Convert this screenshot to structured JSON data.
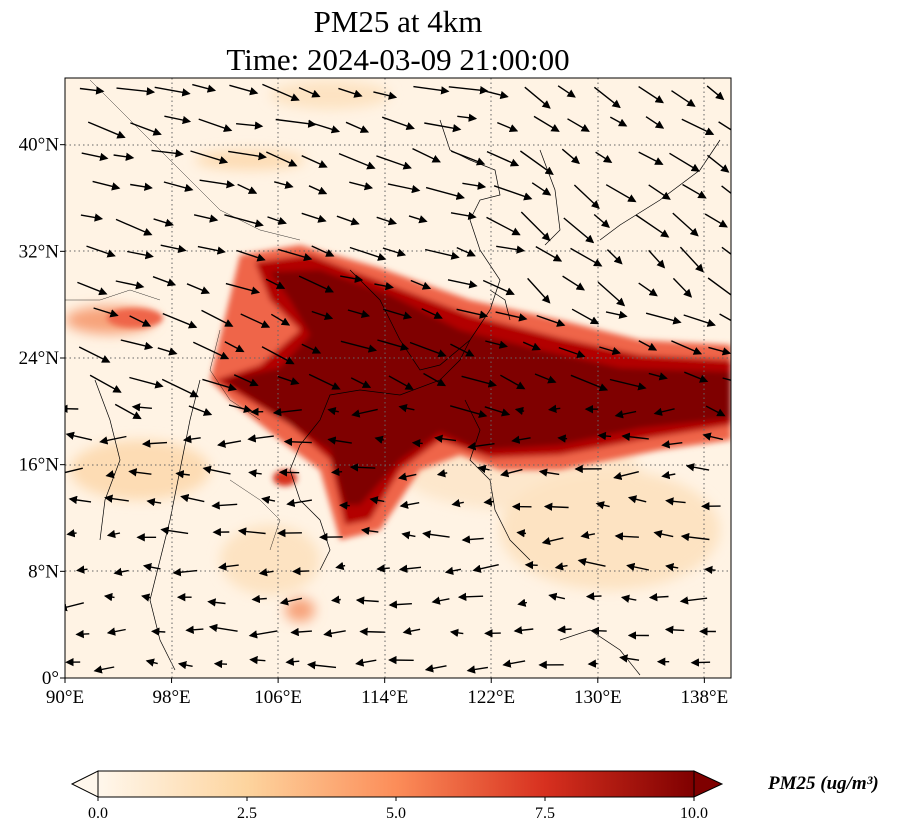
{
  "title": {
    "line1": "PM25 at 4km",
    "line2": "Time: 2024-03-09 21:00:00"
  },
  "map": {
    "extent": {
      "lon_min": 90,
      "lon_max": 140,
      "lat_min": 0,
      "lat_max": 45
    },
    "x_ticks": [
      "90°E",
      "98°E",
      "106°E",
      "114°E",
      "122°E",
      "130°E",
      "138°E"
    ],
    "y_ticks": [
      "0°",
      "8°N",
      "16°N",
      "24°N",
      "32°N",
      "40°N"
    ],
    "x_tick_values": [
      90,
      98,
      106,
      114,
      122,
      130,
      138
    ],
    "y_tick_values": [
      0,
      8,
      16,
      24,
      32,
      40
    ],
    "grid": "dotted",
    "field": "PM25",
    "overlay": "wind vectors",
    "plume_core_lat_range": [
      14,
      30
    ],
    "high_value_color": "#7f0000"
  },
  "colorbar": {
    "min": 0.0,
    "max": 10.0,
    "ticks": [
      "0.0",
      "2.5",
      "5.0",
      "7.5",
      "10.0"
    ],
    "label": "PM25 (ug/m³)",
    "colormap": "OrRd",
    "extend": "both",
    "colors": [
      "#fff7ec",
      "#fdd49e",
      "#fc8d59",
      "#d7301f",
      "#7f0000"
    ]
  }
}
